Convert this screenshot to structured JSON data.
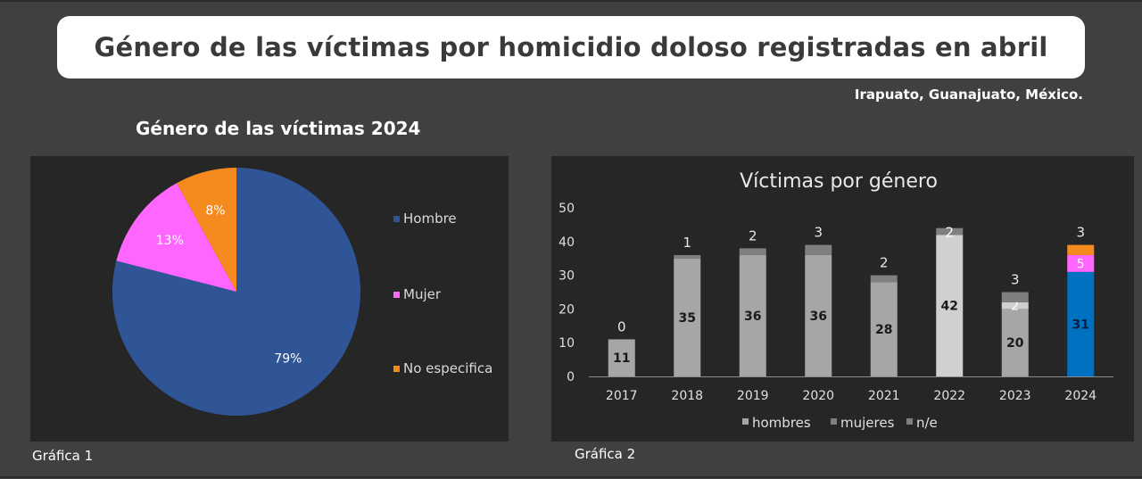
{
  "header": {
    "title": "Género de las víctimas por homicidio doloso registradas en abril",
    "location": "Irapuato, Guanajuato, México."
  },
  "chart1": {
    "title": "Género de las víctimas 2024",
    "caption": "Gráfica 1"
  },
  "chart2": {
    "caption": "Gráfica 2"
  },
  "colors": {
    "background": "#404042",
    "panel": "#262626",
    "hombre_pie": "#2f5597",
    "mujer_pie": "#ff66ff",
    "no_especifica_pie": "#f58b1f",
    "hombres_bar": "#a6a6a6",
    "hombres_2022": "#d0d0d0",
    "hombres_2024": "#0070c0",
    "mujeres_bar": "#7f7f7f",
    "mujeres_2023": "#d0d0d0",
    "mujeres_2024": "#ff66ff",
    "ne_bar": "#7f7f7f",
    "ne_2024": "#f58b1f"
  },
  "chart_data": [
    {
      "type": "pie",
      "title": "Género de las víctimas 2024",
      "categories": [
        "Hombre",
        "Mujer",
        "No especifica"
      ],
      "values": [
        79,
        13,
        8
      ],
      "labels": [
        "79%",
        "13%",
        "8%"
      ],
      "legend": "right"
    },
    {
      "type": "bar",
      "stacked": true,
      "title": "Víctimas por género",
      "categories": [
        "2017",
        "2018",
        "2019",
        "2020",
        "2021",
        "2022",
        "2023",
        "2024"
      ],
      "series": [
        {
          "name": "hombres",
          "values": [
            11,
            35,
            36,
            36,
            28,
            42,
            20,
            31
          ]
        },
        {
          "name": "mujeres",
          "values": [
            0,
            0,
            0,
            0,
            0,
            0,
            2,
            5
          ]
        },
        {
          "name": "n/e",
          "values": [
            0,
            1,
            2,
            3,
            2,
            2,
            3,
            3
          ]
        }
      ],
      "top_labels": [
        "0",
        "1",
        "2",
        "3",
        "2",
        "2",
        "3",
        "3"
      ],
      "ylim": [
        0,
        50
      ],
      "yticks": [
        "0",
        "10",
        "20",
        "30",
        "40",
        "50"
      ],
      "legend": "bottom",
      "grid": false
    }
  ]
}
